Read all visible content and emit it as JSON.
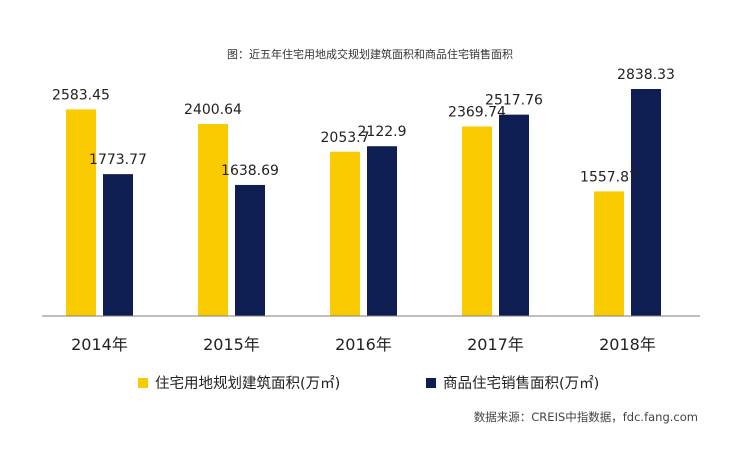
{
  "chart_data": {
    "type": "bar",
    "title": "图：近五年住宅用地成交规划建筑面积和商品住宅销售面积",
    "categories": [
      "2014年",
      "2015年",
      "2016年",
      "2017年",
      "2018年"
    ],
    "series": [
      {
        "name": "住宅用地规划建筑面积(万㎡)",
        "values": [
          2583.45,
          2400.64,
          2053.7,
          2369.74,
          1557.87
        ],
        "labels": [
          "2583.45",
          "2400.64",
          "2053.7",
          "2369.74",
          "1557.87"
        ],
        "color": "#F9CB00"
      },
      {
        "name": "商品住宅销售面积(万㎡)",
        "values": [
          1773.77,
          1638.69,
          2122.9,
          2517.76,
          2838.33
        ],
        "labels": [
          "1773.77",
          "1638.69",
          "2122.9",
          "2517.76",
          "2838.33"
        ],
        "color": "#0F1E52"
      }
    ],
    "ylim": [
      0,
      3000
    ],
    "grid": false,
    "legend_position": "bottom",
    "source": "数据来源：CREIS中指数据，fdc.fang.com"
  }
}
